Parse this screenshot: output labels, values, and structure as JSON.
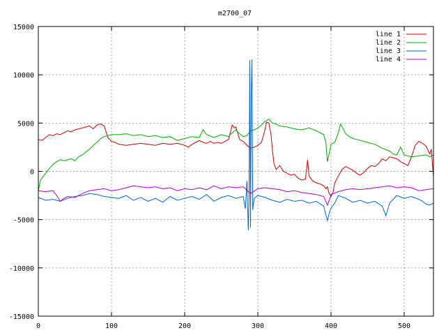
{
  "chart_data": {
    "type": "line",
    "title": "m2700_07",
    "xlabel": "",
    "ylabel": "",
    "xlim": [
      0,
      540
    ],
    "ylim": [
      -15000,
      15000
    ],
    "xticks": [
      0,
      100,
      200,
      300,
      400,
      500
    ],
    "yticks": [
      -15000,
      -10000,
      -5000,
      0,
      5000,
      10000,
      15000
    ],
    "grid": true,
    "legend_position": "top-right",
    "series": [
      {
        "name": "line 1",
        "color": "#cc0000",
        "points": [
          [
            0,
            3300
          ],
          [
            5,
            3200
          ],
          [
            10,
            3500
          ],
          [
            15,
            3800
          ],
          [
            20,
            3700
          ],
          [
            25,
            3900
          ],
          [
            30,
            3800
          ],
          [
            35,
            4000
          ],
          [
            40,
            4200
          ],
          [
            45,
            4100
          ],
          [
            50,
            4300
          ],
          [
            55,
            4400
          ],
          [
            60,
            4500
          ],
          [
            65,
            4600
          ],
          [
            70,
            4700
          ],
          [
            75,
            4400
          ],
          [
            80,
            4800
          ],
          [
            85,
            4900
          ],
          [
            90,
            4700
          ],
          [
            95,
            3500
          ],
          [
            100,
            3100
          ],
          [
            105,
            3000
          ],
          [
            110,
            2800
          ],
          [
            120,
            2700
          ],
          [
            130,
            2800
          ],
          [
            140,
            2900
          ],
          [
            150,
            2800
          ],
          [
            160,
            2700
          ],
          [
            170,
            2900
          ],
          [
            180,
            2800
          ],
          [
            190,
            2900
          ],
          [
            200,
            2700
          ],
          [
            205,
            2500
          ],
          [
            210,
            2800
          ],
          [
            215,
            3000
          ],
          [
            220,
            3200
          ],
          [
            225,
            3000
          ],
          [
            230,
            2900
          ],
          [
            235,
            3100
          ],
          [
            240,
            2900
          ],
          [
            245,
            3000
          ],
          [
            250,
            2900
          ],
          [
            255,
            3100
          ],
          [
            260,
            3300
          ],
          [
            265,
            4800
          ],
          [
            268,
            4500
          ],
          [
            270,
            4600
          ],
          [
            275,
            3300
          ],
          [
            280,
            3100
          ],
          [
            285,
            2700
          ],
          [
            290,
            2400
          ],
          [
            295,
            2500
          ],
          [
            300,
            2700
          ],
          [
            305,
            3000
          ],
          [
            310,
            4400
          ],
          [
            312,
            5100
          ],
          [
            315,
            5000
          ],
          [
            318,
            3800
          ],
          [
            320,
            2200
          ],
          [
            322,
            800
          ],
          [
            325,
            200
          ],
          [
            330,
            600
          ],
          [
            335,
            0
          ],
          [
            340,
            -200
          ],
          [
            345,
            -400
          ],
          [
            350,
            -300
          ],
          [
            355,
            -700
          ],
          [
            360,
            -900
          ],
          [
            365,
            -800
          ],
          [
            368,
            1200
          ],
          [
            370,
            -500
          ],
          [
            375,
            -1000
          ],
          [
            380,
            -1200
          ],
          [
            385,
            -1300
          ],
          [
            390,
            -1500
          ],
          [
            393,
            -1800
          ],
          [
            395,
            -1600
          ],
          [
            397,
            -2200
          ],
          [
            400,
            -2600
          ],
          [
            403,
            -2100
          ],
          [
            405,
            -1200
          ],
          [
            410,
            -500
          ],
          [
            415,
            200
          ],
          [
            420,
            500
          ],
          [
            425,
            300
          ],
          [
            430,
            100
          ],
          [
            435,
            -200
          ],
          [
            440,
            -400
          ],
          [
            445,
            -100
          ],
          [
            450,
            300
          ],
          [
            455,
            600
          ],
          [
            460,
            500
          ],
          [
            465,
            800
          ],
          [
            470,
            1300
          ],
          [
            475,
            1100
          ],
          [
            480,
            1500
          ],
          [
            485,
            1400
          ],
          [
            490,
            1300
          ],
          [
            495,
            1000
          ],
          [
            500,
            800
          ],
          [
            505,
            600
          ],
          [
            510,
            1500
          ],
          [
            515,
            2700
          ],
          [
            520,
            3100
          ],
          [
            525,
            2900
          ],
          [
            530,
            2600
          ],
          [
            535,
            1800
          ],
          [
            537,
            2300
          ],
          [
            540,
            -600
          ]
        ]
      },
      {
        "name": "line 2",
        "color": "#00aa00",
        "points": [
          [
            0,
            -2000
          ],
          [
            3,
            -900
          ],
          [
            6,
            -600
          ],
          [
            10,
            -200
          ],
          [
            15,
            300
          ],
          [
            20,
            700
          ],
          [
            25,
            1000
          ],
          [
            30,
            1200
          ],
          [
            35,
            1100
          ],
          [
            40,
            1200
          ],
          [
            45,
            1300
          ],
          [
            50,
            1100
          ],
          [
            55,
            1500
          ],
          [
            60,
            1700
          ],
          [
            65,
            2000
          ],
          [
            70,
            2300
          ],
          [
            75,
            2700
          ],
          [
            80,
            3000
          ],
          [
            85,
            3400
          ],
          [
            90,
            3600
          ],
          [
            95,
            3700
          ],
          [
            100,
            3800
          ],
          [
            110,
            3800
          ],
          [
            120,
            3900
          ],
          [
            130,
            3700
          ],
          [
            140,
            3800
          ],
          [
            150,
            3600
          ],
          [
            160,
            3700
          ],
          [
            170,
            3500
          ],
          [
            180,
            3600
          ],
          [
            190,
            3200
          ],
          [
            200,
            3400
          ],
          [
            210,
            3600
          ],
          [
            220,
            3500
          ],
          [
            225,
            4300
          ],
          [
            230,
            3800
          ],
          [
            240,
            3500
          ],
          [
            250,
            3800
          ],
          [
            260,
            3600
          ],
          [
            265,
            4000
          ],
          [
            270,
            4300
          ],
          [
            275,
            3900
          ],
          [
            280,
            3600
          ],
          [
            285,
            3700
          ],
          [
            290,
            4200
          ],
          [
            295,
            4300
          ],
          [
            300,
            4500
          ],
          [
            305,
            4800
          ],
          [
            310,
            5200
          ],
          [
            315,
            5400
          ],
          [
            320,
            5000
          ],
          [
            325,
            4900
          ],
          [
            330,
            4700
          ],
          [
            340,
            4600
          ],
          [
            350,
            4400
          ],
          [
            360,
            4300
          ],
          [
            370,
            4500
          ],
          [
            380,
            4200
          ],
          [
            390,
            3800
          ],
          [
            393,
            3000
          ],
          [
            395,
            1000
          ],
          [
            398,
            2000
          ],
          [
            400,
            2800
          ],
          [
            405,
            3000
          ],
          [
            410,
            4000
          ],
          [
            413,
            4900
          ],
          [
            416,
            4500
          ],
          [
            420,
            3900
          ],
          [
            425,
            3600
          ],
          [
            430,
            3400
          ],
          [
            440,
            3200
          ],
          [
            450,
            3000
          ],
          [
            460,
            2800
          ],
          [
            470,
            2400
          ],
          [
            480,
            2100
          ],
          [
            485,
            1800
          ],
          [
            490,
            1700
          ],
          [
            495,
            2500
          ],
          [
            500,
            1700
          ],
          [
            510,
            1500
          ],
          [
            520,
            1600
          ],
          [
            530,
            1700
          ],
          [
            535,
            1500
          ],
          [
            540,
            1700
          ]
        ]
      },
      {
        "name": "line 3",
        "color": "#0066cc",
        "points": [
          [
            0,
            -2700
          ],
          [
            10,
            -3000
          ],
          [
            20,
            -2900
          ],
          [
            30,
            -3100
          ],
          [
            40,
            -2800
          ],
          [
            50,
            -2600
          ],
          [
            60,
            -2500
          ],
          [
            70,
            -2300
          ],
          [
            80,
            -2400
          ],
          [
            90,
            -2600
          ],
          [
            100,
            -2700
          ],
          [
            110,
            -2800
          ],
          [
            120,
            -2500
          ],
          [
            130,
            -3000
          ],
          [
            140,
            -2700
          ],
          [
            150,
            -3100
          ],
          [
            160,
            -2800
          ],
          [
            170,
            -3200
          ],
          [
            180,
            -2600
          ],
          [
            190,
            -3000
          ],
          [
            200,
            -2800
          ],
          [
            210,
            -2600
          ],
          [
            220,
            -2900
          ],
          [
            230,
            -2400
          ],
          [
            240,
            -3100
          ],
          [
            250,
            -2700
          ],
          [
            260,
            -2500
          ],
          [
            270,
            -2800
          ],
          [
            280,
            -2600
          ],
          [
            283,
            -3900
          ],
          [
            285,
            -1000
          ],
          [
            287,
            -6100
          ],
          [
            288,
            -2800
          ],
          [
            289,
            11500
          ],
          [
            290,
            -5800
          ],
          [
            291,
            8200
          ],
          [
            292,
            11600
          ],
          [
            293,
            -4000
          ],
          [
            295,
            -2800
          ],
          [
            300,
            -2500
          ],
          [
            310,
            -2700
          ],
          [
            320,
            -3000
          ],
          [
            330,
            -3200
          ],
          [
            340,
            -2900
          ],
          [
            350,
            -3100
          ],
          [
            360,
            -3000
          ],
          [
            370,
            -3300
          ],
          [
            380,
            -3100
          ],
          [
            390,
            -3600
          ],
          [
            393,
            -4500
          ],
          [
            395,
            -5100
          ],
          [
            398,
            -4200
          ],
          [
            400,
            -3800
          ],
          [
            405,
            -3300
          ],
          [
            410,
            -2500
          ],
          [
            420,
            -2800
          ],
          [
            430,
            -3200
          ],
          [
            440,
            -3000
          ],
          [
            450,
            -3300
          ],
          [
            460,
            -3100
          ],
          [
            470,
            -3600
          ],
          [
            475,
            -4600
          ],
          [
            480,
            -3300
          ],
          [
            490,
            -2500
          ],
          [
            500,
            -2800
          ],
          [
            510,
            -2600
          ],
          [
            520,
            -2900
          ],
          [
            525,
            -3100
          ],
          [
            530,
            -3400
          ],
          [
            535,
            -3500
          ],
          [
            540,
            -3300
          ]
        ]
      },
      {
        "name": "line 4",
        "color": "#aa00cc",
        "points": [
          [
            0,
            -2000
          ],
          [
            10,
            -2100
          ],
          [
            20,
            -2000
          ],
          [
            25,
            -2500
          ],
          [
            30,
            -3100
          ],
          [
            35,
            -2800
          ],
          [
            40,
            -2600
          ],
          [
            50,
            -2700
          ],
          [
            60,
            -2300
          ],
          [
            70,
            -2000
          ],
          [
            80,
            -1900
          ],
          [
            90,
            -1800
          ],
          [
            100,
            -2000
          ],
          [
            110,
            -1900
          ],
          [
            120,
            -1700
          ],
          [
            130,
            -1500
          ],
          [
            140,
            -1600
          ],
          [
            150,
            -1700
          ],
          [
            160,
            -1600
          ],
          [
            170,
            -1800
          ],
          [
            180,
            -1700
          ],
          [
            190,
            -2000
          ],
          [
            200,
            -1800
          ],
          [
            210,
            -1900
          ],
          [
            220,
            -1700
          ],
          [
            230,
            -1900
          ],
          [
            240,
            -1500
          ],
          [
            250,
            -1800
          ],
          [
            260,
            -1600
          ],
          [
            270,
            -1700
          ],
          [
            280,
            -1600
          ],
          [
            290,
            -2300
          ],
          [
            300,
            -1800
          ],
          [
            310,
            -1700
          ],
          [
            320,
            -1800
          ],
          [
            330,
            -1900
          ],
          [
            340,
            -2100
          ],
          [
            350,
            -2000
          ],
          [
            360,
            -2200
          ],
          [
            370,
            -2300
          ],
          [
            380,
            -2400
          ],
          [
            390,
            -2600
          ],
          [
            395,
            -3500
          ],
          [
            398,
            -2900
          ],
          [
            400,
            -2400
          ],
          [
            410,
            -2100
          ],
          [
            420,
            -1900
          ],
          [
            430,
            -1800
          ],
          [
            440,
            -1900
          ],
          [
            450,
            -1800
          ],
          [
            460,
            -1700
          ],
          [
            470,
            -1600
          ],
          [
            480,
            -1500
          ],
          [
            490,
            -1700
          ],
          [
            500,
            -1600
          ],
          [
            510,
            -1700
          ],
          [
            520,
            -2000
          ],
          [
            530,
            -1900
          ],
          [
            540,
            -1800
          ]
        ]
      }
    ]
  }
}
